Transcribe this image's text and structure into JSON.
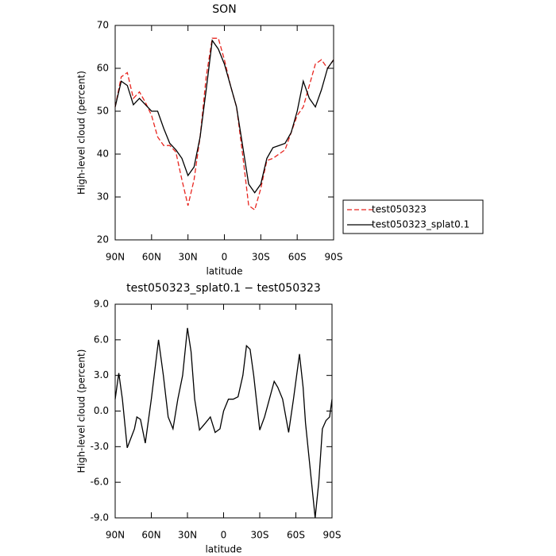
{
  "chart_data": [
    {
      "type": "line",
      "title": "SON",
      "x_label": "latitude",
      "y_label": "High-level cloud (percent)",
      "x": [
        90,
        85,
        80,
        75,
        70,
        65,
        60,
        55,
        50,
        45,
        40,
        35,
        30,
        25,
        20,
        15,
        10,
        5,
        0,
        -5,
        -10,
        -15,
        -20,
        -25,
        -30,
        -35,
        -40,
        -45,
        -50,
        -55,
        -60,
        -65,
        -70,
        -75,
        -80,
        -85,
        -90
      ],
      "series": [
        {
          "name": "test050323",
          "color": "#e8251f",
          "dash": true,
          "values": [
            51,
            58,
            59,
            53,
            54.5,
            52,
            49,
            44,
            42,
            42,
            40.5,
            34,
            28,
            34,
            44,
            58,
            67,
            67,
            62,
            56,
            51,
            40,
            28,
            27,
            32,
            38.5,
            39,
            40,
            41,
            45,
            49,
            51,
            56,
            61,
            62,
            60,
            62
          ]
        },
        {
          "name": "test050323_splat0.1",
          "color": "#000000",
          "dash": false,
          "values": [
            51,
            57,
            56,
            51.5,
            53,
            51.5,
            50,
            50,
            46,
            42.5,
            41,
            39,
            35,
            37,
            44,
            55,
            66.5,
            64.5,
            61,
            56,
            51,
            42,
            33,
            31,
            33,
            39,
            41.5,
            42,
            42.5,
            45,
            50,
            57,
            53,
            51,
            55,
            60,
            62
          ]
        }
      ],
      "xlim": [
        90,
        -90
      ],
      "xticks": [
        {
          "value": 90,
          "label": "90N"
        },
        {
          "value": 60,
          "label": "60N"
        },
        {
          "value": 30,
          "label": "30N"
        },
        0,
        {
          "value": -30,
          "label": "30S"
        },
        {
          "value": -60,
          "label": "60S"
        },
        {
          "value": -90,
          "label": "90S"
        }
      ],
      "ylim": [
        20,
        70
      ],
      "yticks": [
        20,
        30,
        40,
        50,
        60,
        70
      ],
      "legend": "right"
    },
    {
      "type": "line",
      "title": "test050323_splat0.1 − test050323",
      "x_label": "latitude",
      "y_label": "High-level cloud (percent)",
      "x": [
        90,
        87,
        84,
        80,
        77,
        74,
        72,
        69,
        65,
        60,
        54,
        50,
        46,
        42,
        38,
        34,
        30,
        27,
        24,
        20,
        15,
        11,
        7,
        3,
        0,
        -4,
        -8,
        -12,
        -16,
        -19,
        -22,
        -25,
        -30,
        -34,
        -38,
        -42,
        -45,
        -49,
        -54,
        -58,
        -63,
        -66,
        -68,
        -72,
        -76,
        -79,
        -82,
        -85,
        -88,
        -90
      ],
      "series": [
        {
          "color": "#000000",
          "dash": false,
          "values": [
            1,
            3.2,
            1,
            -3.1,
            -2.3,
            -1.5,
            -0.5,
            -0.7,
            -2.7,
            1,
            6,
            3,
            -0.5,
            -1.5,
            1,
            3,
            7,
            5,
            1,
            -1.6,
            -1,
            -0.5,
            -1.8,
            -1.5,
            0,
            1,
            1,
            1.2,
            3,
            5.5,
            5.2,
            3,
            -1.6,
            -0.5,
            1,
            2.5,
            2,
            1,
            -1.8,
            1,
            4.8,
            2,
            -1,
            -5,
            -9,
            -6,
            -1.5,
            -0.8,
            -0.5,
            1
          ]
        }
      ],
      "xlim": [
        90,
        -90
      ],
      "xticks": [
        {
          "value": 90,
          "label": "90N"
        },
        {
          "value": 60,
          "label": "60N"
        },
        {
          "value": 30,
          "label": "30N"
        },
        0,
        {
          "value": -30,
          "label": "30S"
        },
        {
          "value": -60,
          "label": "60S"
        },
        {
          "value": -90,
          "label": "90S"
        }
      ],
      "ylim": [
        -9,
        9
      ],
      "yticks": [
        {
          "value": -9,
          "label": "-9.0"
        },
        {
          "value": -6,
          "label": "-6.0"
        },
        {
          "value": -3,
          "label": "-3.0"
        },
        {
          "value": 0,
          "label": "0.0"
        },
        {
          "value": 3,
          "label": "3.0"
        },
        {
          "value": 6,
          "label": "6.0"
        },
        {
          "value": 9,
          "label": "9.0"
        }
      ]
    }
  ]
}
